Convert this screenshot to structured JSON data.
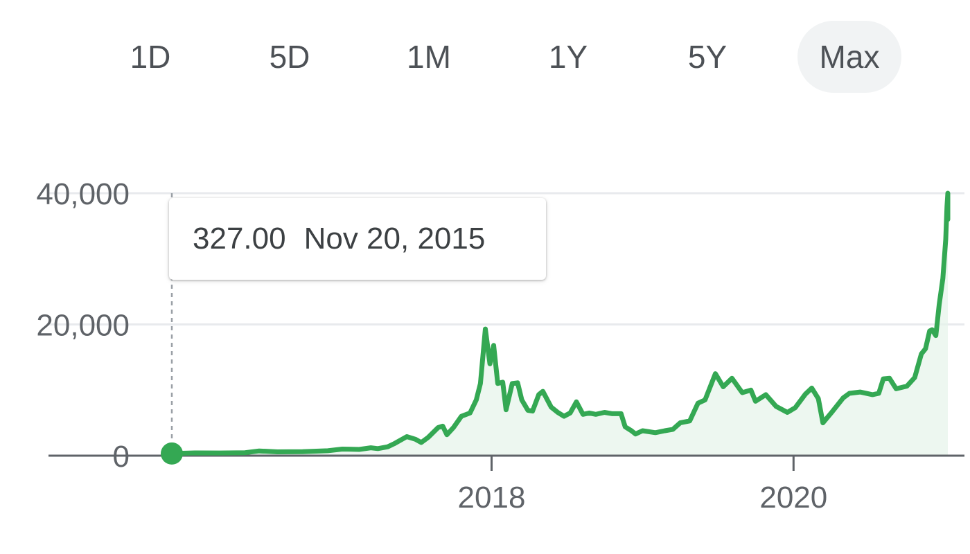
{
  "range_selector": {
    "tabs": [
      {
        "label": "1D",
        "selected": false
      },
      {
        "label": "5D",
        "selected": false
      },
      {
        "label": "1M",
        "selected": false
      },
      {
        "label": "1Y",
        "selected": false
      },
      {
        "label": "5Y",
        "selected": false
      },
      {
        "label": "Max",
        "selected": true
      }
    ]
  },
  "tooltip": {
    "price": "327.00",
    "date": "Nov 20, 2015"
  },
  "colors": {
    "line": "#34a853",
    "fill": "#e6f4ea",
    "grid": "#e8eaed",
    "axis": "#5f6368",
    "text": "#4d5156"
  },
  "chart_data": {
    "type": "area",
    "title": "",
    "xlabel": "",
    "ylabel": "",
    "ylim": [
      0,
      40000
    ],
    "xlim": [
      "2015-11-20",
      "2021-01-08"
    ],
    "y_ticks": [
      {
        "label": "40,000",
        "value": 40000
      },
      {
        "label": "20,000",
        "value": 20000
      },
      {
        "label": "0",
        "value": 0
      }
    ],
    "x_ticks": [
      {
        "label": "2018",
        "date": "2018-01-01"
      },
      {
        "label": "2020",
        "date": "2020-01-01"
      }
    ],
    "grid": "horizontal",
    "selected_point": {
      "date": "2015-11-20",
      "value": 327
    },
    "series": [
      {
        "points": [
          [
            "2015-11-20",
            327
          ],
          [
            "2016-01-15",
            420
          ],
          [
            "2016-03-15",
            410
          ],
          [
            "2016-05-15",
            450
          ],
          [
            "2016-06-18",
            720
          ],
          [
            "2016-08-01",
            580
          ],
          [
            "2016-10-01",
            610
          ],
          [
            "2016-12-01",
            750
          ],
          [
            "2017-01-05",
            1000
          ],
          [
            "2017-02-15",
            950
          ],
          [
            "2017-03-15",
            1200
          ],
          [
            "2017-04-01",
            1080
          ],
          [
            "2017-04-25",
            1350
          ],
          [
            "2017-05-10",
            1800
          ],
          [
            "2017-06-10",
            2900
          ],
          [
            "2017-07-01",
            2500
          ],
          [
            "2017-07-15",
            2000
          ],
          [
            "2017-08-01",
            2800
          ],
          [
            "2017-08-25",
            4300
          ],
          [
            "2017-09-05",
            4500
          ],
          [
            "2017-09-15",
            3200
          ],
          [
            "2017-10-01",
            4300
          ],
          [
            "2017-10-20",
            6000
          ],
          [
            "2017-11-10",
            6500
          ],
          [
            "2017-11-25",
            8500
          ],
          [
            "2017-12-05",
            11000
          ],
          [
            "2017-12-17",
            19300
          ],
          [
            "2017-12-28",
            14000
          ],
          [
            "2018-01-06",
            16800
          ],
          [
            "2018-01-16",
            11000
          ],
          [
            "2018-01-28",
            11200
          ],
          [
            "2018-02-05",
            7000
          ],
          [
            "2018-02-20",
            11000
          ],
          [
            "2018-03-05",
            11100
          ],
          [
            "2018-03-15",
            8500
          ],
          [
            "2018-03-30",
            6900
          ],
          [
            "2018-04-10",
            6800
          ],
          [
            "2018-04-25",
            9300
          ],
          [
            "2018-05-05",
            9800
          ],
          [
            "2018-05-25",
            7400
          ],
          [
            "2018-06-10",
            6600
          ],
          [
            "2018-06-25",
            6000
          ],
          [
            "2018-07-10",
            6500
          ],
          [
            "2018-07-25",
            8200
          ],
          [
            "2018-08-10",
            6300
          ],
          [
            "2018-08-25",
            6500
          ],
          [
            "2018-09-10",
            6300
          ],
          [
            "2018-10-01",
            6600
          ],
          [
            "2018-10-20",
            6400
          ],
          [
            "2018-11-10",
            6400
          ],
          [
            "2018-11-20",
            4400
          ],
          [
            "2018-12-05",
            3800
          ],
          [
            "2018-12-15",
            3300
          ],
          [
            "2019-01-01",
            3800
          ],
          [
            "2019-02-01",
            3500
          ],
          [
            "2019-02-24",
            3800
          ],
          [
            "2019-03-15",
            4000
          ],
          [
            "2019-04-02",
            5000
          ],
          [
            "2019-04-25",
            5300
          ],
          [
            "2019-05-15",
            8000
          ],
          [
            "2019-06-01",
            8500
          ],
          [
            "2019-06-26",
            12500
          ],
          [
            "2019-07-15",
            10500
          ],
          [
            "2019-08-05",
            11800
          ],
          [
            "2019-08-30",
            9600
          ],
          [
            "2019-09-20",
            10000
          ],
          [
            "2019-10-01",
            8300
          ],
          [
            "2019-10-26",
            9300
          ],
          [
            "2019-11-20",
            7500
          ],
          [
            "2019-12-17",
            6600
          ],
          [
            "2020-01-05",
            7300
          ],
          [
            "2020-01-30",
            9400
          ],
          [
            "2020-02-14",
            10300
          ],
          [
            "2020-03-01",
            8700
          ],
          [
            "2020-03-12",
            5000
          ],
          [
            "2020-04-01",
            6500
          ],
          [
            "2020-04-30",
            8800
          ],
          [
            "2020-05-15",
            9500
          ],
          [
            "2020-06-10",
            9700
          ],
          [
            "2020-07-10",
            9300
          ],
          [
            "2020-07-25",
            9500
          ],
          [
            "2020-08-05",
            11700
          ],
          [
            "2020-08-20",
            11800
          ],
          [
            "2020-09-05",
            10200
          ],
          [
            "2020-10-01",
            10600
          ],
          [
            "2020-10-20",
            11900
          ],
          [
            "2020-11-05",
            15500
          ],
          [
            "2020-11-15",
            16300
          ],
          [
            "2020-11-25",
            19000
          ],
          [
            "2020-12-01",
            19200
          ],
          [
            "2020-12-10",
            18300
          ],
          [
            "2020-12-18",
            23000
          ],
          [
            "2020-12-27",
            27000
          ],
          [
            "2021-01-03",
            33000
          ],
          [
            "2021-01-06",
            38000
          ],
          [
            "2021-01-08",
            40000
          ],
          [
            "2021-01-08",
            36000
          ]
        ]
      }
    ]
  }
}
